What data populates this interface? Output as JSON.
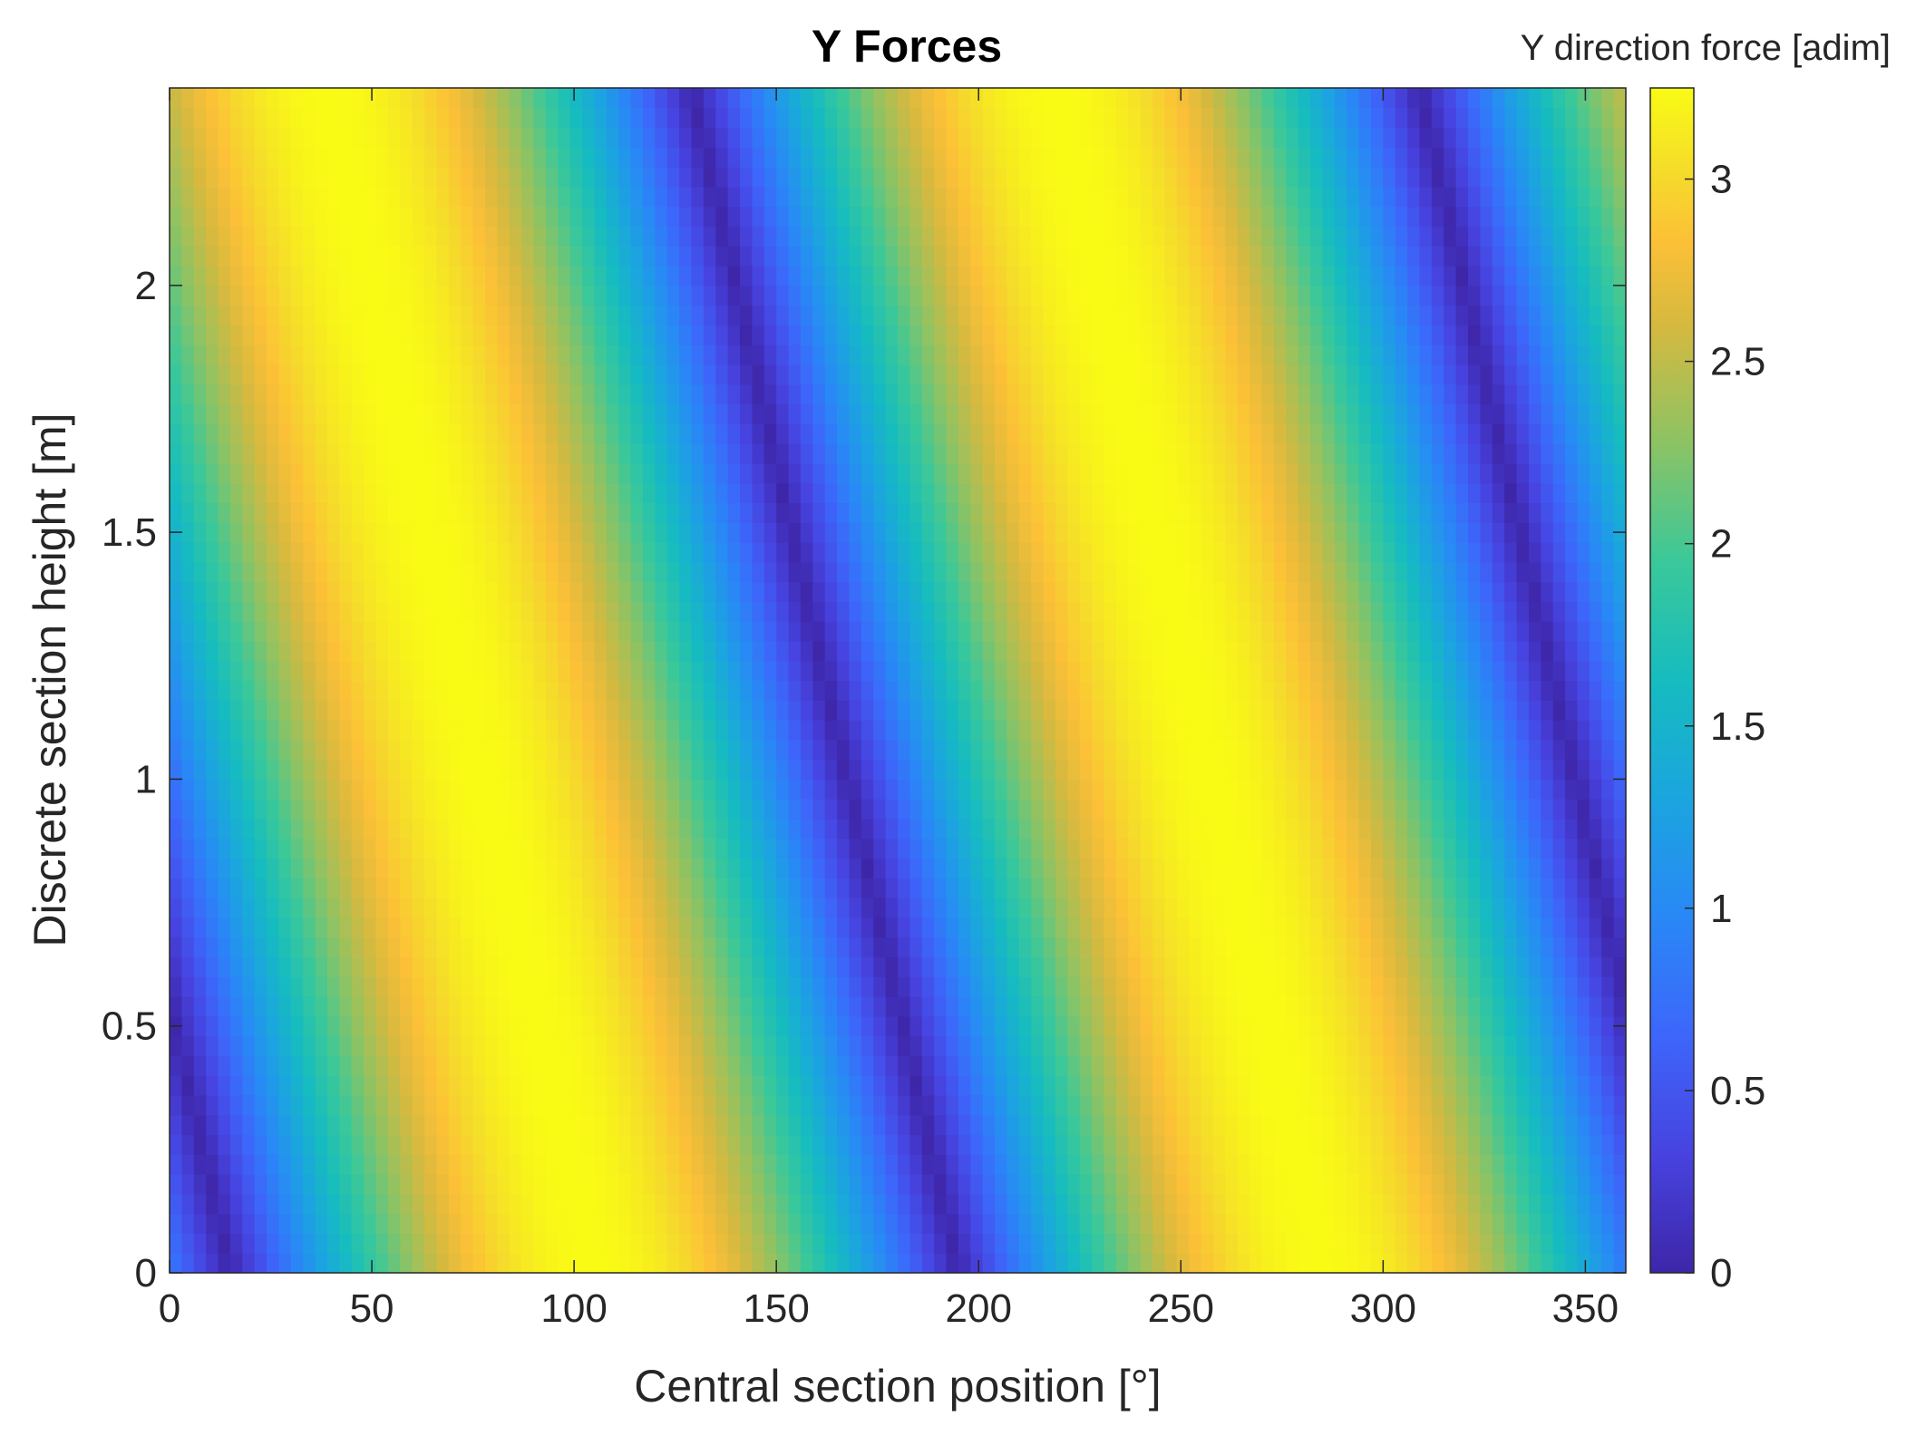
{
  "chart_data": {
    "type": "heatmap",
    "title": "Y Forces",
    "xlabel": "Central section position [°]",
    "ylabel": "Discrete section height [m]",
    "colorbar_label": "Y direction force [adim]",
    "colormap": "parula",
    "xlim": [
      0,
      360
    ],
    "ylim": [
      0,
      2.4
    ],
    "clim": [
      0,
      3.25
    ],
    "xticks": [
      0,
      50,
      100,
      150,
      200,
      250,
      300,
      350
    ],
    "xtick_labels": [
      "0",
      "50",
      "100",
      "150",
      "200",
      "250",
      "300",
      "350"
    ],
    "yticks": [
      0,
      0.5,
      1,
      1.5,
      2
    ],
    "ytick_labels": [
      "0",
      "0.5",
      "1",
      "1.5",
      "2"
    ],
    "cticks": [
      0,
      0.5,
      1,
      1.5,
      2,
      2.5,
      3
    ],
    "ctick_labels": [
      "0",
      "0.5",
      "1",
      "1.5",
      "2",
      "2.5",
      "3"
    ],
    "grid": false,
    "field": {
      "description_of_values": "Y force ≈ 3.25·|sin(x + 27.5·y − 15°)|, periodic every 180° in x, band centres shift left with increasing height",
      "amplitude": 3.25,
      "period_deg": 180,
      "zero_crossings_at_y0_deg": [
        15,
        195
      ],
      "maxima_at_y0_deg": [
        105,
        285
      ],
      "shift_deg_per_m": 27.5
    },
    "colors": {
      "low": "#3e26a8",
      "mid": "#16c7b4",
      "high": "#f9fb15"
    }
  }
}
